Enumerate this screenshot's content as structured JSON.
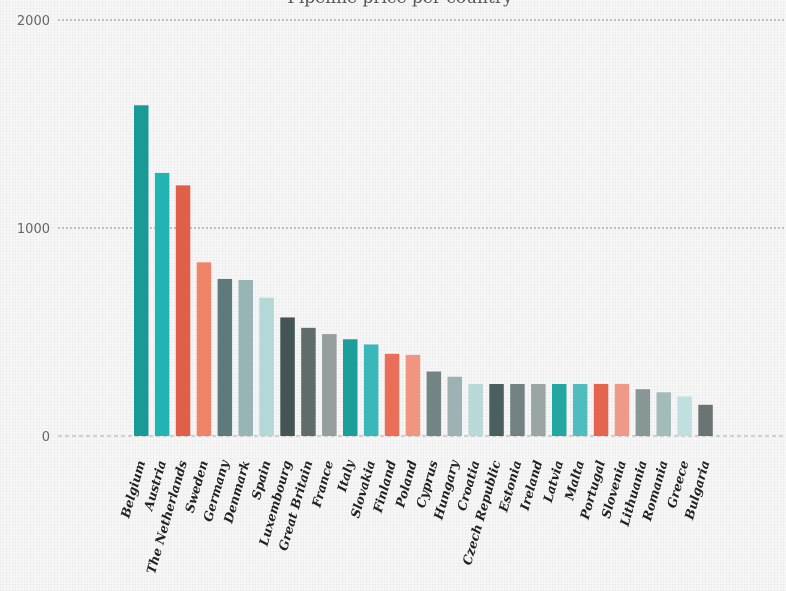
{
  "chart_data": {
    "type": "bar",
    "title": "Pipeline price per country",
    "xlabel": "",
    "ylabel": "",
    "ylim": [
      0,
      2000
    ],
    "yticks": [
      0,
      1000,
      2000
    ],
    "grid": true,
    "categories": [
      "Belgium",
      "Austria",
      "The Netherlands",
      "Sweden",
      "Germany",
      "Denmark",
      "Spain",
      "Luxembourg",
      "Great Britain",
      "France",
      "Italy",
      "Slovakia",
      "Finland",
      "Poland",
      "Cyprus",
      "Hungary",
      "Croatia",
      "Czech Republic",
      "Estonia",
      "Ireland",
      "Latvia",
      "Malta",
      "Portugal",
      "Slovenia",
      "Lithuania",
      "Romania",
      "Greece",
      "Bulgaria"
    ],
    "values": [
      1590,
      1265,
      1205,
      835,
      755,
      750,
      665,
      570,
      520,
      490,
      465,
      440,
      395,
      390,
      310,
      285,
      250,
      250,
      250,
      250,
      250,
      250,
      250,
      250,
      225,
      210,
      190,
      150
    ],
    "colors": [
      "#1a9a96",
      "#22b3b3",
      "#e05f48",
      "#ee8468",
      "#5f7a7a",
      "#98b4b4",
      "#b4d8d8",
      "#435555",
      "#606b6b",
      "#969d9d",
      "#1c9e9a",
      "#3ab7ba",
      "#ea6e58",
      "#ef9580",
      "#738484",
      "#9db3b3",
      "#b9d8d8",
      "#4c5f5f",
      "#728282",
      "#9aa6a6",
      "#24a6a3",
      "#4fbcbd",
      "#e4644f",
      "#ef9a88",
      "#869796",
      "#a3bbb9",
      "#bfe0df",
      "#6b7474"
    ]
  }
}
